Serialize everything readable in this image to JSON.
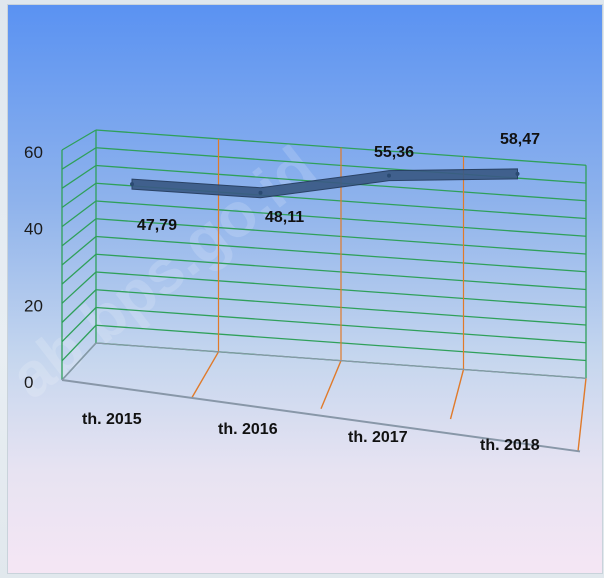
{
  "watermark": "ab bps.go.id",
  "chart_data": {
    "type": "line",
    "categories": [
      "th. 2015",
      "th. 2016",
      "th. 2017",
      "th. 2018"
    ],
    "series": [
      {
        "values": [
          47.79,
          48.11,
          55.36,
          58.47
        ]
      }
    ],
    "data_labels": [
      "47,79",
      "48,11",
      "55,36",
      "58,47"
    ],
    "ylim": [
      0,
      60
    ],
    "yticks": [
      0,
      20,
      40,
      60
    ],
    "ytick_labels": [
      "0",
      "20",
      "40",
      "60"
    ],
    "grid": true,
    "style": "3d",
    "colors": {
      "line": "#3a5a85",
      "gridlines": "#2fa05a",
      "depth_lines": "#e07a2a",
      "floor": "#8897a8"
    }
  }
}
